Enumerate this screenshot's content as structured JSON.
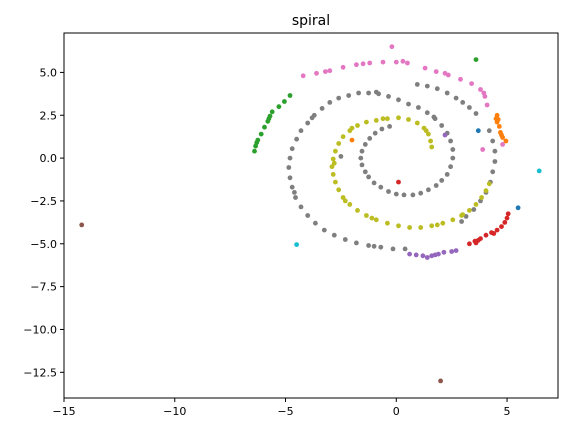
{
  "chart_data": {
    "type": "scatter",
    "title": "spiral",
    "xlabel": "",
    "ylabel": "",
    "xlim": [
      -15.0,
      7.3
    ],
    "ylim": [
      -14.0,
      7.3
    ],
    "xticks": [
      -15,
      -10,
      -5,
      0,
      5
    ],
    "xtick_labels": [
      "−15",
      "−10",
      "−5",
      "0",
      "5"
    ],
    "yticks": [
      5.0,
      2.5,
      0.0,
      -2.5,
      -5.0,
      -7.5,
      -10.0,
      -12.5
    ],
    "ytick_labels": [
      "5.0",
      "2.5",
      "0.0",
      "−2.5",
      "−5.0",
      "−7.5",
      "−10.0",
      "−12.5"
    ],
    "grid": false,
    "series": [
      {
        "color": "#7f7f7f",
        "points": [
          [
            -1.4,
            -0.8
          ],
          [
            -1.55,
            -0.4
          ],
          [
            -1.6,
            0.0
          ],
          [
            -1.55,
            0.4
          ],
          [
            -1.4,
            0.8
          ],
          [
            -1.2,
            1.15
          ],
          [
            -0.95,
            1.45
          ],
          [
            -0.65,
            1.7
          ],
          [
            -0.3,
            1.85
          ],
          [
            -1.25,
            -1.1
          ],
          [
            -1.0,
            -1.45
          ],
          [
            -0.7,
            -1.7
          ],
          [
            -0.35,
            -1.95
          ],
          [
            0.0,
            -2.1
          ],
          [
            0.35,
            -2.15
          ],
          [
            0.75,
            -2.15
          ],
          [
            1.1,
            -2.05
          ],
          [
            1.45,
            -1.85
          ],
          [
            1.8,
            -1.6
          ],
          [
            2.05,
            -1.3
          ],
          [
            2.3,
            -0.95
          ],
          [
            2.45,
            -0.5
          ],
          [
            2.55,
            0.0
          ],
          [
            2.55,
            0.5
          ],
          [
            2.45,
            1.0
          ],
          [
            2.3,
            1.45
          ],
          [
            2.05,
            1.9
          ],
          [
            1.75,
            2.3
          ],
          [
            1.4,
            2.65
          ],
          [
            1.0,
            2.95
          ],
          [
            0.55,
            3.15
          ],
          [
            0.1,
            3.4
          ],
          [
            -0.35,
            3.6
          ],
          [
            -0.8,
            3.75
          ],
          [
            -1.25,
            3.8
          ],
          [
            -1.7,
            3.8
          ],
          [
            -2.15,
            3.65
          ],
          [
            -2.6,
            3.5
          ],
          [
            -3.0,
            3.25
          ],
          [
            -3.35,
            2.9
          ],
          [
            -3.7,
            2.5
          ],
          [
            -4.0,
            2.05
          ],
          [
            -4.3,
            1.6
          ],
          [
            -4.5,
            1.1
          ],
          [
            -4.7,
            0.55
          ],
          [
            -4.8,
            0.0
          ],
          [
            -4.85,
            -0.55
          ],
          [
            -4.8,
            -1.15
          ],
          [
            -4.7,
            -1.7
          ],
          [
            -4.55,
            -2.3
          ],
          [
            -4.3,
            -2.85
          ],
          [
            -4.0,
            -3.35
          ],
          [
            -3.65,
            -3.8
          ],
          [
            -3.25,
            -4.2
          ],
          [
            -2.8,
            -4.5
          ],
          [
            -2.3,
            -4.75
          ],
          [
            -1.8,
            -4.95
          ],
          [
            -1.25,
            -5.1
          ],
          [
            -0.7,
            -5.2
          ],
          [
            -0.15,
            -5.3
          ],
          [
            0.4,
            -5.3
          ],
          [
            3.15,
            -3.4
          ],
          [
            3.5,
            -3.0
          ],
          [
            3.8,
            -2.5
          ],
          [
            4.05,
            -2.0
          ],
          [
            4.25,
            -1.4
          ],
          [
            4.35,
            -0.8
          ],
          [
            4.45,
            -0.2
          ],
          [
            4.45,
            0.4
          ],
          [
            4.35,
            1.0
          ],
          [
            4.2,
            1.6
          ],
          [
            3.0,
            3.25
          ],
          [
            2.7,
            3.5
          ],
          [
            2.3,
            3.8
          ],
          [
            1.85,
            4.05
          ],
          [
            1.4,
            4.2
          ],
          [
            0.95,
            4.3
          ],
          [
            3.6,
            2.6
          ],
          [
            3.3,
            2.95
          ],
          [
            -2.5,
            0.1
          ],
          [
            -0.9,
            3.85
          ],
          [
            1.7,
            2.4
          ],
          [
            -3.8,
            2.35
          ],
          [
            -4.6,
            -2.0
          ],
          [
            -1.0,
            -5.15
          ],
          [
            2.95,
            -3.7
          ]
        ]
      },
      {
        "color": "#bcbd22",
        "points": [
          [
            -0.4,
            2.3
          ],
          [
            -0.9,
            2.2
          ],
          [
            -1.35,
            2.1
          ],
          [
            -1.75,
            1.9
          ],
          [
            -2.1,
            1.6
          ],
          [
            -2.4,
            1.25
          ],
          [
            -2.6,
            0.85
          ],
          [
            -2.75,
            0.4
          ],
          [
            -2.85,
            -0.05
          ],
          [
            -2.9,
            -0.5
          ],
          [
            -2.85,
            -0.95
          ],
          [
            -2.75,
            -1.4
          ],
          [
            -2.6,
            -1.85
          ],
          [
            -2.4,
            -2.3
          ],
          [
            -2.1,
            -2.7
          ],
          [
            -1.75,
            -3.05
          ],
          [
            -1.35,
            -3.35
          ],
          [
            -0.9,
            -3.6
          ],
          [
            -0.4,
            -3.8
          ],
          [
            0.1,
            -3.95
          ],
          [
            0.6,
            -4.05
          ],
          [
            1.1,
            -4.05
          ],
          [
            1.6,
            -3.95
          ],
          [
            2.1,
            -3.8
          ],
          [
            2.55,
            -3.6
          ],
          [
            2.95,
            -3.35
          ],
          [
            3.3,
            -3.05
          ],
          [
            3.6,
            -2.7
          ],
          [
            3.85,
            -2.3
          ],
          [
            4.05,
            -1.9
          ],
          [
            4.2,
            -1.5
          ],
          [
            0.1,
            2.35
          ],
          [
            0.55,
            2.25
          ],
          [
            0.95,
            2.05
          ],
          [
            1.25,
            1.75
          ],
          [
            1.45,
            1.4
          ],
          [
            1.55,
            1.0
          ],
          [
            1.6,
            0.65
          ],
          [
            -0.6,
            2.3
          ],
          [
            -2.0,
            1.75
          ],
          [
            -2.8,
            -0.3
          ],
          [
            -2.3,
            -2.5
          ],
          [
            -1.1,
            -3.5
          ],
          [
            1.85,
            -3.9
          ],
          [
            3.0,
            -3.3
          ],
          [
            1.35,
            1.6
          ]
        ]
      },
      {
        "color": "#e377c2",
        "points": [
          [
            -4.2,
            4.8
          ],
          [
            -3.6,
            4.95
          ],
          [
            -3.0,
            5.1
          ],
          [
            -2.4,
            5.3
          ],
          [
            -1.8,
            5.45
          ],
          [
            -1.2,
            5.55
          ],
          [
            -0.6,
            5.6
          ],
          [
            0.0,
            5.6
          ],
          [
            0.5,
            5.55
          ],
          [
            1.3,
            5.25
          ],
          [
            1.8,
            5.05
          ],
          [
            2.35,
            4.85
          ],
          [
            2.9,
            4.6
          ],
          [
            3.4,
            4.35
          ],
          [
            3.8,
            4.0
          ],
          [
            4.0,
            3.6
          ],
          [
            4.1,
            3.1
          ],
          [
            -1.5,
            5.5
          ],
          [
            0.3,
            5.65
          ],
          [
            2.2,
            4.95
          ],
          [
            3.95,
            3.8
          ],
          [
            -0.2,
            6.5
          ],
          [
            4.8,
            0.8
          ],
          [
            3.9,
            0.5
          ],
          [
            -3.2,
            5.05
          ]
        ]
      },
      {
        "color": "#2ca02c",
        "points": [
          [
            -6.4,
            0.4
          ],
          [
            -6.35,
            0.7
          ],
          [
            -6.25,
            1.05
          ],
          [
            -6.1,
            1.4
          ],
          [
            -5.95,
            1.8
          ],
          [
            -5.8,
            2.15
          ],
          [
            -5.7,
            2.45
          ],
          [
            -5.6,
            2.7
          ],
          [
            -5.3,
            3.0
          ],
          [
            -5.05,
            3.3
          ],
          [
            -4.8,
            3.65
          ],
          [
            -6.3,
            0.9
          ],
          [
            -5.75,
            2.3
          ],
          [
            3.6,
            5.75
          ]
        ]
      },
      {
        "color": "#d62728",
        "points": [
          [
            3.3,
            -5.0
          ],
          [
            3.55,
            -4.85
          ],
          [
            3.8,
            -4.7
          ],
          [
            4.05,
            -4.5
          ],
          [
            4.3,
            -4.35
          ],
          [
            4.55,
            -4.2
          ],
          [
            4.75,
            -4.0
          ],
          [
            4.9,
            -3.75
          ],
          [
            5.0,
            -3.5
          ],
          [
            5.05,
            -3.25
          ],
          [
            4.4,
            -4.4
          ],
          [
            3.7,
            -4.8
          ],
          [
            0.1,
            -1.4
          ],
          [
            3.6,
            -4.95
          ]
        ]
      },
      {
        "color": "#ff7f0e",
        "points": [
          [
            4.5,
            2.3
          ],
          [
            4.55,
            2.5
          ],
          [
            4.6,
            2.25
          ],
          [
            4.65,
            1.85
          ],
          [
            4.7,
            1.5
          ],
          [
            4.8,
            1.2
          ],
          [
            4.95,
            1.0
          ],
          [
            4.55,
            2.1
          ],
          [
            4.75,
            1.35
          ],
          [
            -2.0,
            1.05
          ]
        ]
      },
      {
        "color": "#9467bd",
        "points": [
          [
            0.6,
            -5.6
          ],
          [
            0.9,
            -5.65
          ],
          [
            1.2,
            -5.7
          ],
          [
            1.4,
            -5.8
          ],
          [
            1.6,
            -5.7
          ],
          [
            1.9,
            -5.6
          ],
          [
            2.15,
            -5.5
          ],
          [
            2.5,
            -5.45
          ],
          [
            2.7,
            -5.4
          ],
          [
            1.75,
            -5.65
          ],
          [
            2.2,
            1.35
          ]
        ]
      },
      {
        "color": "#1f77b4",
        "points": [
          [
            3.7,
            1.6
          ],
          [
            5.5,
            -2.9
          ]
        ]
      },
      {
        "color": "#17becf",
        "points": [
          [
            6.45,
            -0.75
          ],
          [
            -4.5,
            -5.05
          ]
        ]
      },
      {
        "color": "#8c564b",
        "points": [
          [
            -14.2,
            -3.9
          ],
          [
            2.0,
            -13.0
          ]
        ]
      }
    ]
  }
}
